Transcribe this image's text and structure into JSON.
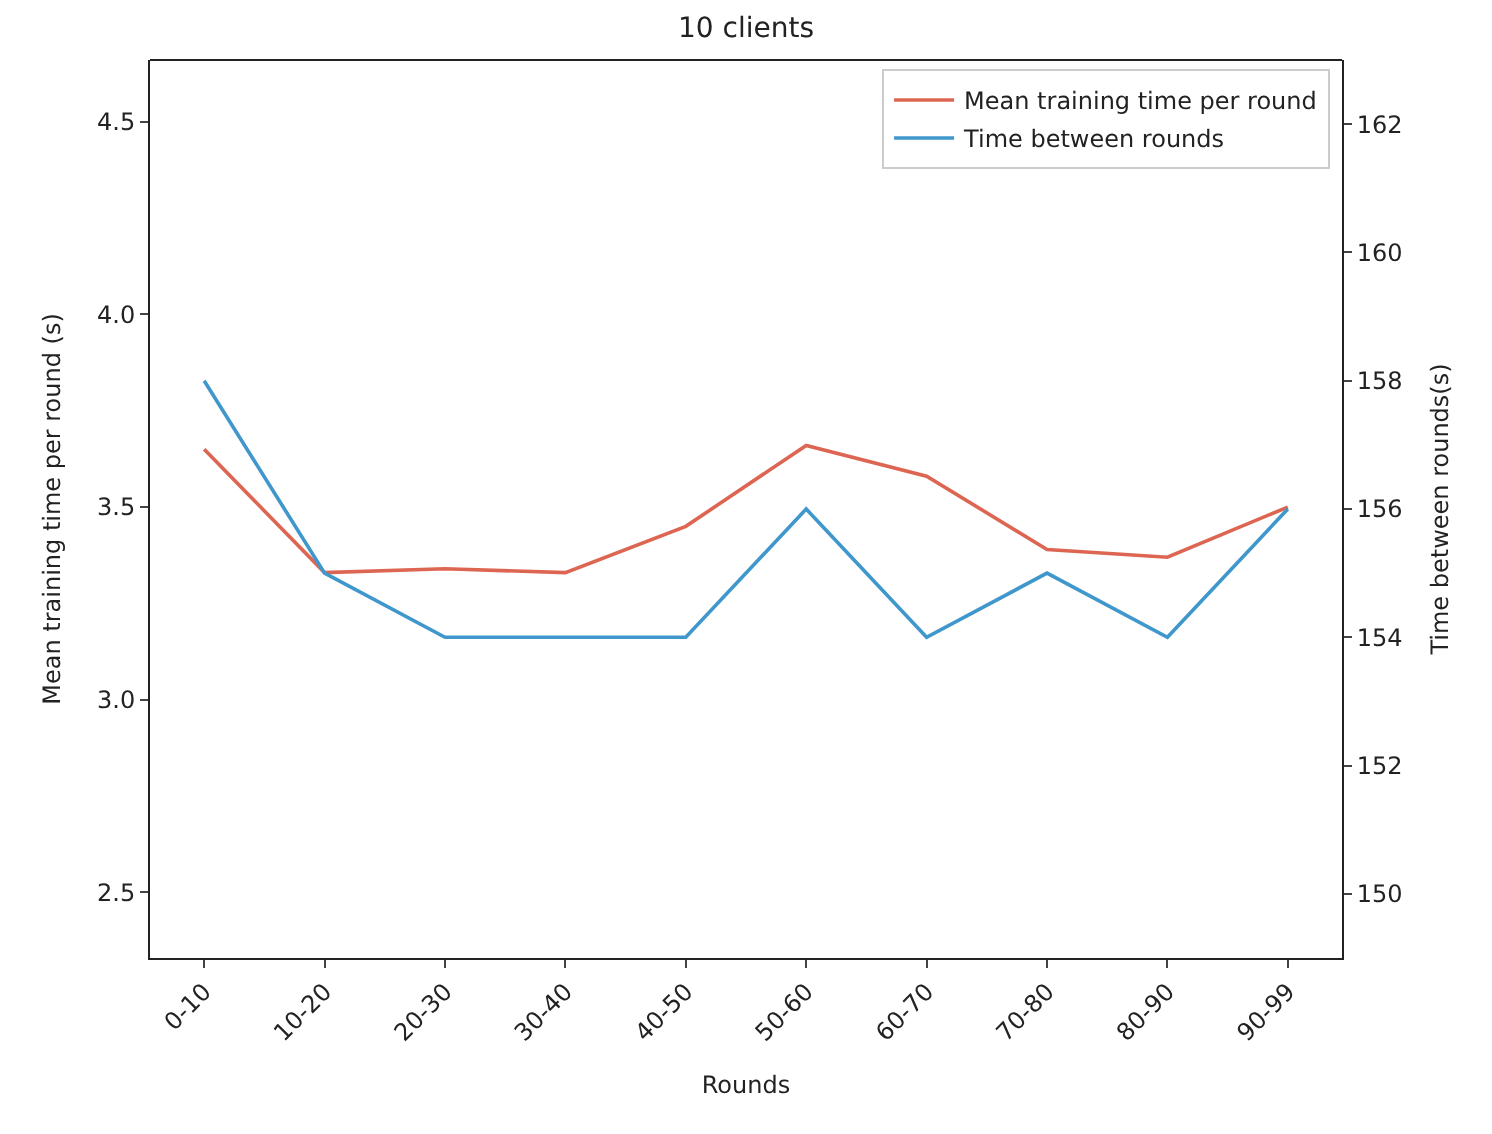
{
  "chart_data": {
    "type": "line",
    "title": "10 clients",
    "xlabel": "Rounds",
    "ylabel": "Mean training time per round (s)",
    "y2label": "Time between rounds(s)",
    "categories": [
      "0-10",
      "10-20",
      "20-30",
      "30-40",
      "40-50",
      "50-60",
      "60-70",
      "70-80",
      "80-90",
      "90-99"
    ],
    "series": [
      {
        "name": "Mean training time per round",
        "color": "#dd6653",
        "values": [
          3.65,
          3.33,
          3.34,
          3.33,
          3.45,
          3.66,
          3.58,
          3.39,
          3.37,
          3.5
        ]
      },
      {
        "name": "Time between rounds",
        "color": "#3f97cc",
        "axis": "y2",
        "values": [
          158,
          155,
          154,
          154,
          154,
          156,
          154,
          155,
          154,
          156
        ]
      }
    ],
    "ylim": [
      2.33,
      4.66
    ],
    "yticks": [
      {
        "value": 2.5,
        "label": "2.5"
      },
      {
        "value": 3.0,
        "label": "3.0"
      },
      {
        "value": 3.5,
        "label": "3.5"
      },
      {
        "value": 4.0,
        "label": "4.0"
      },
      {
        "value": 4.5,
        "label": "4.5"
      }
    ],
    "y2lim": [
      149,
      163
    ],
    "y2ticks": [
      150,
      152,
      154,
      156,
      158,
      160,
      162
    ],
    "legend": "top right"
  }
}
